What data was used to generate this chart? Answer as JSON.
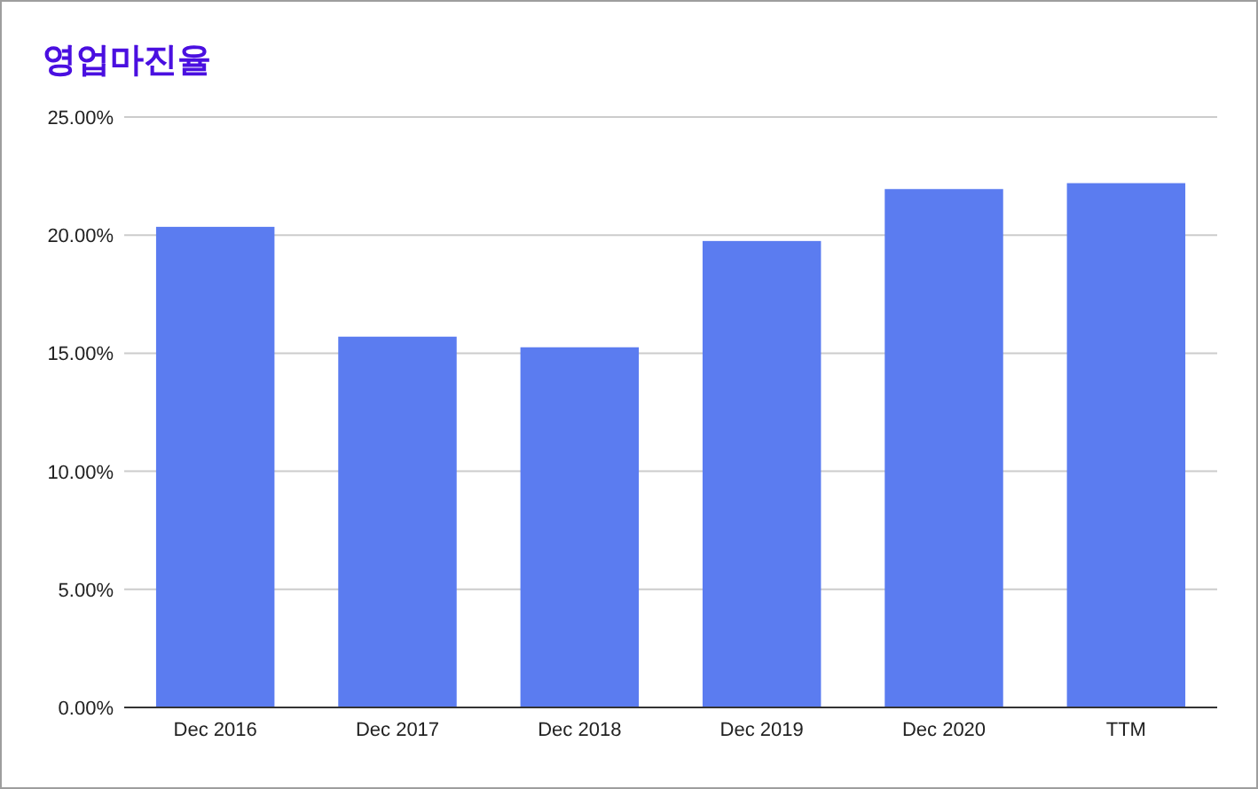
{
  "chart_data": {
    "type": "bar",
    "title": "영업마진율",
    "categories": [
      "Dec 2016",
      "Dec 2017",
      "Dec 2018",
      "Dec 2019",
      "Dec 2020",
      "TTM"
    ],
    "values": [
      20.35,
      15.7,
      15.25,
      19.75,
      21.95,
      22.2
    ],
    "color": "#5b7cf0",
    "ylim": [
      0,
      25
    ],
    "yticks": [
      {
        "value": 0,
        "label": "0.00%"
      },
      {
        "value": 5,
        "label": "5.00%"
      },
      {
        "value": 10,
        "label": "10.00%"
      },
      {
        "value": 15,
        "label": "15.00%"
      },
      {
        "value": 20,
        "label": "20.00%"
      },
      {
        "value": 25,
        "label": "25.00%"
      }
    ],
    "grid": "y"
  }
}
